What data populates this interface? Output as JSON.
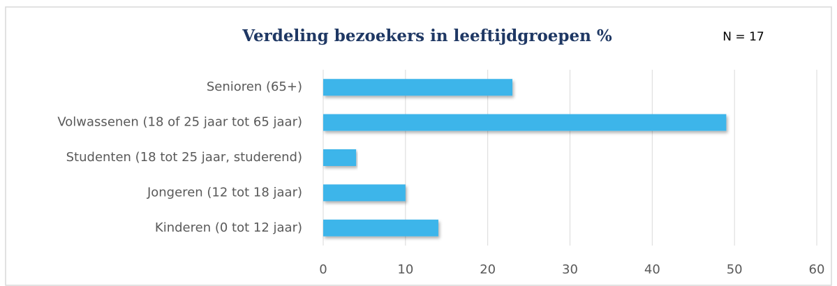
{
  "chart_data": {
    "type": "bar",
    "orientation": "horizontal",
    "title": "Verdeling bezoekers in leeftijdgroepen %",
    "annotation": "N = 17",
    "categories": [
      "Senioren (65+)",
      "Volwassenen (18 of 25 jaar tot 65 jaar)",
      "Studenten (18 tot 25 jaar, studerend)",
      "Jongeren (12 tot 18 jaar)",
      "Kinderen (0 tot 12 jaar)"
    ],
    "values": [
      23,
      49,
      4,
      10,
      14
    ],
    "color": "#3db5ea",
    "xlim": [
      0,
      60
    ],
    "xticks": [
      0,
      10,
      20,
      30,
      40,
      50,
      60
    ],
    "grid": true
  }
}
